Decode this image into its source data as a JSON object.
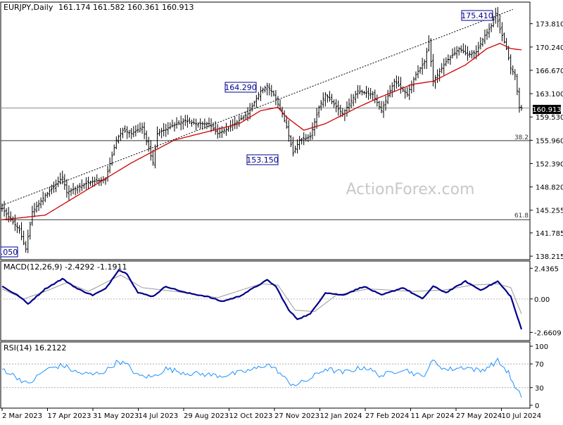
{
  "chart_data": [
    {
      "type": "candlestick",
      "title": "EURJPY,Daily",
      "ohlc_header": "161.174 161.582 160.361 160.913",
      "watermark": "ActionForex.com",
      "ylim": [
        137.9,
        176.9
      ],
      "price_ticks": [
        "173.810",
        "170.240",
        "166.670",
        "163.100",
        "159.530",
        "155.960",
        "152.390",
        "148.820",
        "145.255",
        "141.785",
        "138.215"
      ],
      "last_price_label": "160.913",
      "annotations": [
        "175.410",
        "164.290",
        "153.150",
        ".050"
      ],
      "fib_levels": [
        {
          "label": "38.2",
          "price": 155.9
        },
        {
          "label": "61.8",
          "price": 143.8
        }
      ],
      "horizontal_line_price": 160.9,
      "trend_channel": {
        "start": [
          0,
          146.0
        ],
        "end": [
          237,
          176.0
        ]
      },
      "series": [
        {
          "name": "price",
          "color": "#000000"
        },
        {
          "name": "moving_average",
          "color": "#cc0000"
        }
      ],
      "x_labels": [
        "2 Mar 2023",
        "17 Apr 2023",
        "31 May 2023",
        "14 Jul 2023",
        "29 Aug 2023",
        "12 Oct 2023",
        "27 Nov 2023",
        "12 Jan 2024",
        "27 Feb 2024",
        "11 Apr 2024",
        "27 May 2024",
        "10 Jul 2024"
      ],
      "anchors_price": [
        [
          0,
          145.5
        ],
        [
          8,
          142.2
        ],
        [
          11,
          139.3
        ],
        [
          14,
          145.0
        ],
        [
          20,
          147.5
        ],
        [
          28,
          150.3
        ],
        [
          30,
          148.0
        ],
        [
          40,
          149.5
        ],
        [
          48,
          150.0
        ],
        [
          53,
          156.0
        ],
        [
          56,
          157.5
        ],
        [
          60,
          157.0
        ],
        [
          65,
          158.0
        ],
        [
          70,
          152.5
        ],
        [
          72,
          157.0
        ],
        [
          78,
          158.0
        ],
        [
          85,
          159.0
        ],
        [
          90,
          158.5
        ],
        [
          96,
          158.5
        ],
        [
          100,
          157.0
        ],
        [
          106,
          158.0
        ],
        [
          114,
          160.0
        ],
        [
          120,
          163.5
        ],
        [
          123,
          164.3
        ],
        [
          126,
          163.0
        ],
        [
          130,
          160.0
        ],
        [
          132,
          158.0
        ],
        [
          135,
          154.0
        ],
        [
          138,
          156.0
        ],
        [
          143,
          156.5
        ],
        [
          147,
          161.0
        ],
        [
          150,
          163.0
        ],
        [
          158,
          160.0
        ],
        [
          165,
          163.5
        ],
        [
          172,
          163.0
        ],
        [
          176,
          160.5
        ],
        [
          182,
          165.0
        ],
        [
          188,
          163.0
        ],
        [
          192,
          166.0
        ],
        [
          196,
          168.0
        ],
        [
          198,
          171.0
        ],
        [
          200,
          165.0
        ],
        [
          206,
          168.0
        ],
        [
          212,
          170.0
        ],
        [
          216,
          169.0
        ],
        [
          220,
          169.5
        ],
        [
          224,
          172.0
        ],
        [
          227,
          173.5
        ],
        [
          229,
          175.4
        ],
        [
          231,
          173.0
        ],
        [
          234,
          170.0
        ],
        [
          236,
          167.0
        ],
        [
          238,
          166.0
        ],
        [
          240,
          161.0
        ],
        [
          241,
          160.9
        ]
      ],
      "anchors_ma": [
        [
          0,
          143.8
        ],
        [
          20,
          144.5
        ],
        [
          40,
          148.5
        ],
        [
          60,
          152.5
        ],
        [
          80,
          156.0
        ],
        [
          110,
          158.5
        ],
        [
          120,
          160.5
        ],
        [
          128,
          161.0
        ],
        [
          132,
          159.5
        ],
        [
          140,
          157.5
        ],
        [
          150,
          158.5
        ],
        [
          165,
          161.0
        ],
        [
          175,
          162.5
        ],
        [
          190,
          164.5
        ],
        [
          200,
          165.0
        ],
        [
          215,
          167.5
        ],
        [
          225,
          170.0
        ],
        [
          231,
          170.8
        ],
        [
          236,
          170.0
        ],
        [
          241,
          169.8
        ]
      ],
      "n_bars": 242
    },
    {
      "type": "line",
      "title": "MACD(12,26,9) -2.4292 -1.1911",
      "ylim": [
        -3.2,
        2.9
      ],
      "y_ticks": [
        {
          "label": "2.4365",
          "value": 2.4365
        },
        {
          "label": "0.00",
          "value": 0.0
        },
        {
          "label": "-2.6609",
          "value": -2.6609
        }
      ],
      "series": [
        {
          "name": "macd",
          "color": "#00008b"
        },
        {
          "name": "signal",
          "color": "#999999"
        }
      ],
      "anchors_macd": [
        [
          0,
          1.0
        ],
        [
          8,
          0.2
        ],
        [
          12,
          -0.4
        ],
        [
          20,
          0.8
        ],
        [
          28,
          1.6
        ],
        [
          35,
          0.8
        ],
        [
          42,
          0.3
        ],
        [
          48,
          0.8
        ],
        [
          54,
          2.3
        ],
        [
          58,
          2.0
        ],
        [
          63,
          0.5
        ],
        [
          70,
          0.2
        ],
        [
          76,
          1.0
        ],
        [
          85,
          0.5
        ],
        [
          95,
          0.2
        ],
        [
          102,
          -0.2
        ],
        [
          110,
          0.2
        ],
        [
          118,
          1.0
        ],
        [
          123,
          1.5
        ],
        [
          127,
          1.0
        ],
        [
          133,
          -0.9
        ],
        [
          137,
          -1.6
        ],
        [
          143,
          -1.2
        ],
        [
          150,
          0.5
        ],
        [
          158,
          0.3
        ],
        [
          168,
          1.0
        ],
        [
          176,
          0.3
        ],
        [
          186,
          0.9
        ],
        [
          195,
          0.0
        ],
        [
          200,
          1.0
        ],
        [
          206,
          0.5
        ],
        [
          215,
          1.4
        ],
        [
          222,
          0.7
        ],
        [
          230,
          1.4
        ],
        [
          236,
          0.2
        ],
        [
          241,
          -2.43
        ]
      ],
      "anchors_signal": [
        [
          0,
          0.8
        ],
        [
          10,
          0.0
        ],
        [
          20,
          0.6
        ],
        [
          30,
          1.3
        ],
        [
          40,
          0.6
        ],
        [
          55,
          1.9
        ],
        [
          65,
          0.9
        ],
        [
          80,
          0.6
        ],
        [
          100,
          0.1
        ],
        [
          120,
          1.2
        ],
        [
          128,
          1.1
        ],
        [
          136,
          -0.9
        ],
        [
          145,
          -1.0
        ],
        [
          155,
          0.3
        ],
        [
          170,
          0.8
        ],
        [
          190,
          0.6
        ],
        [
          205,
          0.7
        ],
        [
          218,
          1.1
        ],
        [
          230,
          1.2
        ],
        [
          236,
          0.9
        ],
        [
          241,
          -1.19
        ]
      ],
      "n_bars": 242
    },
    {
      "type": "line",
      "title": "RSI(14) 16.2122",
      "ylim": [
        0,
        100
      ],
      "y_ticks": [
        {
          "label": "100",
          "value": 100
        },
        {
          "label": "70",
          "value": 70
        },
        {
          "label": "30",
          "value": 30
        },
        {
          "label": "0",
          "value": 0
        }
      ],
      "levels": [
        70,
        30
      ],
      "series": [
        {
          "name": "rsi",
          "color": "#1e90ff"
        }
      ],
      "anchors_rsi": [
        [
          0,
          62
        ],
        [
          8,
          45
        ],
        [
          12,
          35
        ],
        [
          20,
          60
        ],
        [
          28,
          68
        ],
        [
          35,
          55
        ],
        [
          42,
          52
        ],
        [
          48,
          58
        ],
        [
          54,
          75
        ],
        [
          58,
          68
        ],
        [
          63,
          50
        ],
        [
          70,
          48
        ],
        [
          76,
          62
        ],
        [
          85,
          55
        ],
        [
          95,
          52
        ],
        [
          102,
          50
        ],
        [
          110,
          55
        ],
        [
          118,
          62
        ],
        [
          123,
          70
        ],
        [
          128,
          58
        ],
        [
          133,
          38
        ],
        [
          137,
          35
        ],
        [
          143,
          45
        ],
        [
          150,
          62
        ],
        [
          158,
          55
        ],
        [
          168,
          65
        ],
        [
          176,
          50
        ],
        [
          186,
          62
        ],
        [
          195,
          48
        ],
        [
          200,
          75
        ],
        [
          206,
          60
        ],
        [
          215,
          65
        ],
        [
          222,
          58
        ],
        [
          230,
          75
        ],
        [
          235,
          55
        ],
        [
          238,
          28
        ],
        [
          241,
          16
        ]
      ],
      "n_bars": 242
    }
  ]
}
